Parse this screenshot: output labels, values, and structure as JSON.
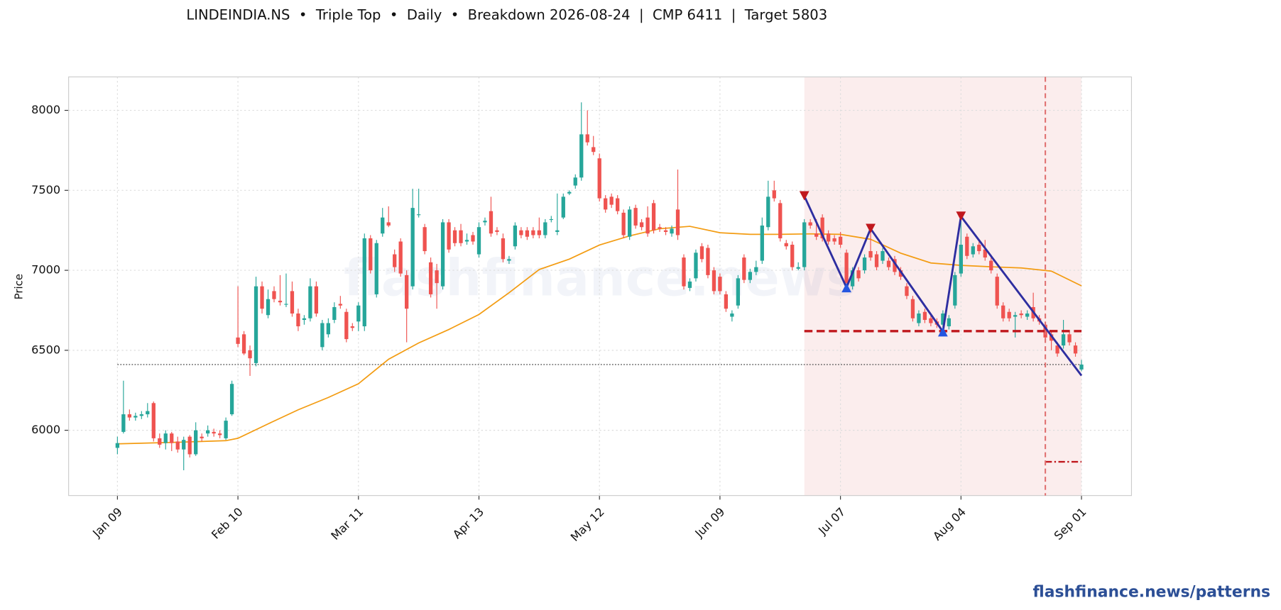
{
  "chart_data": {
    "type": "candlestick",
    "title": "LINDEINDIA.NS  •  Triple Top  •  Daily  •  Breakdown 2026-08-24  |  CMP 6411  |  Target 5803",
    "ylabel": "Price",
    "watermark": "flashfinance.news",
    "footer": "flashfinance.news/patterns",
    "xlim": [
      -8.1,
      168.3
    ],
    "ylim": [
      5592,
      8209
    ],
    "xticks": [
      {
        "value": 0,
        "label": "Jan 09"
      },
      {
        "value": 20,
        "label": "Feb 10"
      },
      {
        "value": 40,
        "label": "Mar 11"
      },
      {
        "value": 60,
        "label": "Apr 13"
      },
      {
        "value": 80,
        "label": "May 12"
      },
      {
        "value": 100,
        "label": "Jun 09"
      },
      {
        "value": 120,
        "label": "Jul 07"
      },
      {
        "value": 140,
        "label": "Aug 04"
      },
      {
        "value": 160,
        "label": "Sep 01"
      }
    ],
    "yticks": [
      6000,
      6500,
      7000,
      7500,
      8000
    ],
    "grid": true,
    "up_color": "#26a69a",
    "down_color": "#ef5350",
    "candles": [
      [
        5890,
        5960,
        5850,
        5920
      ],
      [
        5990,
        6310,
        5980,
        6100
      ],
      [
        6100,
        6130,
        6060,
        6080
      ],
      [
        6080,
        6110,
        6060,
        6090
      ],
      [
        6090,
        6120,
        6070,
        6100
      ],
      [
        6100,
        6170,
        6080,
        6120
      ],
      [
        6170,
        6180,
        5930,
        5950
      ],
      [
        5950,
        5980,
        5890,
        5910
      ],
      [
        5920,
        6000,
        5880,
        5980
      ],
      [
        5980,
        5990,
        5870,
        5920
      ],
      [
        5930,
        5960,
        5860,
        5880
      ],
      [
        5880,
        5960,
        5750,
        5940
      ],
      [
        5960,
        5970,
        5830,
        5850
      ],
      [
        5850,
        6050,
        5840,
        6000
      ],
      [
        5960,
        5980,
        5930,
        5950
      ],
      [
        5980,
        6030,
        5960,
        6000
      ],
      [
        5990,
        6010,
        5960,
        5980
      ],
      [
        5980,
        6000,
        5950,
        5970
      ],
      [
        5950,
        6080,
        5940,
        6060
      ],
      [
        6100,
        6310,
        6090,
        6290
      ],
      [
        6580,
        6900,
        6520,
        6540
      ],
      [
        6600,
        6620,
        6470,
        6480
      ],
      [
        6500,
        6530,
        6340,
        6450
      ],
      [
        6420,
        6960,
        6400,
        6900
      ],
      [
        6900,
        6930,
        6730,
        6760
      ],
      [
        6720,
        6880,
        6700,
        6820
      ],
      [
        6870,
        6900,
        6800,
        6820
      ],
      [
        6810,
        6970,
        6780,
        6800
      ],
      [
        6790,
        6980,
        6770,
        6790
      ],
      [
        6870,
        6930,
        6710,
        6730
      ],
      [
        6730,
        6760,
        6620,
        6650
      ],
      [
        6690,
        6720,
        6660,
        6700
      ],
      [
        6700,
        6950,
        6680,
        6900
      ],
      [
        6900,
        6930,
        6710,
        6730
      ],
      [
        6520,
        6690,
        6500,
        6670
      ],
      [
        6600,
        6700,
        6580,
        6670
      ],
      [
        6690,
        6800,
        6670,
        6770
      ],
      [
        6790,
        6840,
        6760,
        6780
      ],
      [
        6740,
        6760,
        6550,
        6570
      ],
      [
        6650,
        6670,
        6620,
        6640
      ],
      [
        6680,
        6800,
        6620,
        6780
      ],
      [
        6650,
        7230,
        6620,
        7200
      ],
      [
        7200,
        7220,
        6980,
        7000
      ],
      [
        6850,
        7190,
        6830,
        7170
      ],
      [
        7230,
        7390,
        7210,
        7330
      ],
      [
        7300,
        7400,
        7270,
        7280
      ],
      [
        7100,
        7130,
        6990,
        7020
      ],
      [
        7180,
        7200,
        6960,
        6980
      ],
      [
        6970,
        7000,
        6550,
        6760
      ],
      [
        6900,
        7510,
        6880,
        7390
      ],
      [
        7350,
        7510,
        7330,
        7350
      ],
      [
        7270,
        7290,
        7100,
        7120
      ],
      [
        7050,
        7080,
        6830,
        6850
      ],
      [
        7000,
        7040,
        6760,
        6920
      ],
      [
        6900,
        7320,
        6880,
        7300
      ],
      [
        7300,
        7320,
        7110,
        7130
      ],
      [
        7250,
        7270,
        7150,
        7170
      ],
      [
        7250,
        7290,
        7150,
        7170
      ],
      [
        7180,
        7230,
        7160,
        7190
      ],
      [
        7220,
        7240,
        7160,
        7180
      ],
      [
        7100,
        7300,
        7080,
        7270
      ],
      [
        7300,
        7330,
        7280,
        7310
      ],
      [
        7370,
        7460,
        7210,
        7230
      ],
      [
        7250,
        7270,
        7220,
        7240
      ],
      [
        7200,
        7230,
        7050,
        7070
      ],
      [
        7060,
        7090,
        7040,
        7070
      ],
      [
        7150,
        7300,
        7130,
        7280
      ],
      [
        7250,
        7270,
        7200,
        7220
      ],
      [
        7250,
        7270,
        7190,
        7210
      ],
      [
        7250,
        7270,
        7200,
        7220
      ],
      [
        7250,
        7330,
        7200,
        7220
      ],
      [
        7220,
        7320,
        7200,
        7300
      ],
      [
        7320,
        7340,
        7300,
        7320
      ],
      [
        7240,
        7480,
        7220,
        7250
      ],
      [
        7330,
        7480,
        7320,
        7460
      ],
      [
        7480,
        7500,
        7470,
        7490
      ],
      [
        7530,
        7600,
        7510,
        7580
      ],
      [
        7580,
        8050,
        7560,
        7850
      ],
      [
        7850,
        8000,
        7780,
        7800
      ],
      [
        7770,
        7840,
        7720,
        7740
      ],
      [
        7700,
        7730,
        7430,
        7450
      ],
      [
        7450,
        7470,
        7360,
        7380
      ],
      [
        7460,
        7480,
        7390,
        7410
      ],
      [
        7450,
        7470,
        7350,
        7370
      ],
      [
        7360,
        7380,
        7200,
        7220
      ],
      [
        7210,
        7400,
        7190,
        7380
      ],
      [
        7390,
        7410,
        7260,
        7280
      ],
      [
        7300,
        7320,
        7250,
        7270
      ],
      [
        7330,
        7400,
        7210,
        7230
      ],
      [
        7420,
        7440,
        7230,
        7250
      ],
      [
        7270,
        7290,
        7240,
        7260
      ],
      [
        7250,
        7270,
        7220,
        7240
      ],
      [
        7230,
        7280,
        7210,
        7260
      ],
      [
        7380,
        7630,
        7190,
        7220
      ],
      [
        7080,
        7100,
        6880,
        6900
      ],
      [
        6890,
        6950,
        6870,
        6930
      ],
      [
        6950,
        7130,
        6930,
        7110
      ],
      [
        7150,
        7170,
        7050,
        7070
      ],
      [
        7140,
        7160,
        6950,
        6970
      ],
      [
        7000,
        7020,
        6850,
        6870
      ],
      [
        6960,
        6980,
        6850,
        6870
      ],
      [
        6850,
        6870,
        6740,
        6760
      ],
      [
        6710,
        6750,
        6680,
        6730
      ],
      [
        6780,
        6970,
        6760,
        6950
      ],
      [
        7080,
        7100,
        6920,
        6940
      ],
      [
        6940,
        7010,
        6920,
        6990
      ],
      [
        6990,
        7060,
        6970,
        7020
      ],
      [
        7060,
        7330,
        7040,
        7280
      ],
      [
        7270,
        7560,
        7250,
        7460
      ],
      [
        7500,
        7560,
        7430,
        7450
      ],
      [
        7420,
        7440,
        7180,
        7200
      ],
      [
        7170,
        7190,
        7130,
        7150
      ],
      [
        7160,
        7180,
        7000,
        7020
      ],
      [
        7010,
        7050,
        7000,
        7020
      ],
      [
        7020,
        7320,
        7000,
        7300
      ],
      [
        7300,
        7320,
        7260,
        7280
      ],
      [
        7230,
        7320,
        7190,
        7210
      ],
      [
        7330,
        7350,
        7180,
        7200
      ],
      [
        7230,
        7250,
        7160,
        7180
      ],
      [
        7200,
        7220,
        7160,
        7180
      ],
      [
        7210,
        7240,
        7140,
        7160
      ],
      [
        7110,
        7130,
        6900,
        6920
      ],
      [
        6900,
        7020,
        6880,
        7000
      ],
      [
        7000,
        7020,
        6930,
        6950
      ],
      [
        7000,
        7100,
        6980,
        7080
      ],
      [
        7120,
        7260,
        7060,
        7080
      ],
      [
        7100,
        7120,
        7000,
        7020
      ],
      [
        7060,
        7140,
        7040,
        7120
      ],
      [
        7060,
        7080,
        7000,
        7020
      ],
      [
        7070,
        7090,
        6970,
        6990
      ],
      [
        7000,
        7020,
        6940,
        6960
      ],
      [
        6900,
        6920,
        6820,
        6840
      ],
      [
        6820,
        6840,
        6680,
        6700
      ],
      [
        6670,
        6750,
        6650,
        6730
      ],
      [
        6740,
        6760,
        6670,
        6690
      ],
      [
        6700,
        6720,
        6650,
        6670
      ],
      [
        6680,
        6700,
        6640,
        6660
      ],
      [
        6660,
        6750,
        6600,
        6730
      ],
      [
        6650,
        6720,
        6630,
        6700
      ],
      [
        6780,
        6990,
        6760,
        6970
      ],
      [
        6980,
        7340,
        6960,
        7160
      ],
      [
        7210,
        7230,
        7070,
        7090
      ],
      [
        7100,
        7170,
        7080,
        7150
      ],
      [
        7160,
        7180,
        7100,
        7120
      ],
      [
        7130,
        7190,
        7060,
        7080
      ],
      [
        7060,
        7080,
        6980,
        7000
      ],
      [
        6960,
        6980,
        6760,
        6780
      ],
      [
        6780,
        6800,
        6680,
        6700
      ],
      [
        6740,
        6760,
        6680,
        6700
      ],
      [
        6710,
        6740,
        6580,
        6720
      ],
      [
        6730,
        6750,
        6700,
        6720
      ],
      [
        6710,
        6750,
        6690,
        6730
      ],
      [
        6770,
        6860,
        6680,
        6700
      ],
      [
        6700,
        6720,
        6660,
        6680
      ],
      [
        6660,
        6680,
        6560,
        6580
      ],
      [
        6600,
        6620,
        6500,
        6560
      ],
      [
        6530,
        6550,
        6460,
        6480
      ],
      [
        6530,
        6690,
        6510,
        6600
      ],
      [
        6600,
        6620,
        6530,
        6550
      ],
      [
        6530,
        6550,
        6460,
        6480
      ],
      [
        6380,
        6440,
        6370,
        6411
      ]
    ],
    "ma": {
      "color": "#f39c12",
      "x": [
        0,
        10,
        18,
        20,
        25,
        30,
        35,
        40,
        45,
        50,
        55,
        60,
        65,
        70,
        75,
        80,
        85,
        90,
        95,
        100,
        105,
        110,
        115,
        120,
        125,
        130,
        135,
        140,
        145,
        150,
        155,
        160
      ],
      "values": [
        5915,
        5925,
        5935,
        5950,
        6040,
        6128,
        6205,
        6291,
        6444,
        6546,
        6630,
        6724,
        6860,
        7005,
        7070,
        7158,
        7215,
        7260,
        7275,
        7235,
        7225,
        7225,
        7228,
        7225,
        7194,
        7107,
        7046,
        7031,
        7022,
        7015,
        6995,
        6903
      ]
    },
    "cmp": {
      "value": 6411,
      "x": [
        0,
        160
      ],
      "color": "#555555"
    },
    "neckline": {
      "value": 6620,
      "x": [
        114,
        160
      ],
      "color": "#c0181d"
    },
    "target": {
      "value": 5803,
      "x": [
        154,
        160
      ],
      "color": "#c0181d"
    },
    "breakdown_x": 154,
    "breakdown_color": "#e07070",
    "pattern_range": [
      114,
      160
    ],
    "pattern_color": "#f9e6e6",
    "zigzag": {
      "color": "#2e2ea0",
      "x": [
        114,
        121,
        125,
        137,
        140,
        160
      ],
      "values": [
        7464,
        6893,
        7260,
        6617,
        7337,
        6342
      ]
    },
    "peak_color": "#c0181d",
    "trough_color": "#2456e0"
  }
}
